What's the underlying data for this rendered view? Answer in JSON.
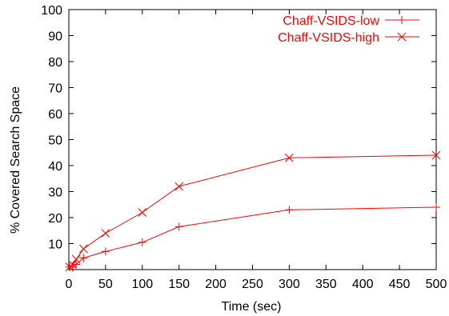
{
  "chart_data": {
    "type": "line",
    "title": "",
    "xlabel": "Time (sec)",
    "ylabel": "% Covered Search Space",
    "xlim": [
      0,
      500
    ],
    "ylim": [
      0,
      100
    ],
    "xticks": [
      0,
      50,
      100,
      150,
      200,
      250,
      300,
      350,
      400,
      450,
      500
    ],
    "yticks": [
      10,
      20,
      30,
      40,
      50,
      60,
      70,
      80,
      90,
      100
    ],
    "grid": false,
    "legend": "top-right",
    "series": [
      {
        "name": "Chaff-VSIDS-low",
        "marker": "plus",
        "color": "#ff0000",
        "x": [
          1,
          5,
          10,
          20,
          50,
          100,
          150,
          300,
          500
        ],
        "y": [
          1,
          1,
          2,
          4.5,
          7,
          10.5,
          16.5,
          23,
          24
        ]
      },
      {
        "name": "Chaff-VSIDS-high",
        "marker": "cross",
        "color": "#ff0000",
        "x": [
          1,
          5,
          10,
          20,
          50,
          100,
          150,
          300,
          500
        ],
        "y": [
          1,
          2,
          4,
          8,
          14,
          22,
          32,
          43,
          44
        ]
      }
    ]
  }
}
